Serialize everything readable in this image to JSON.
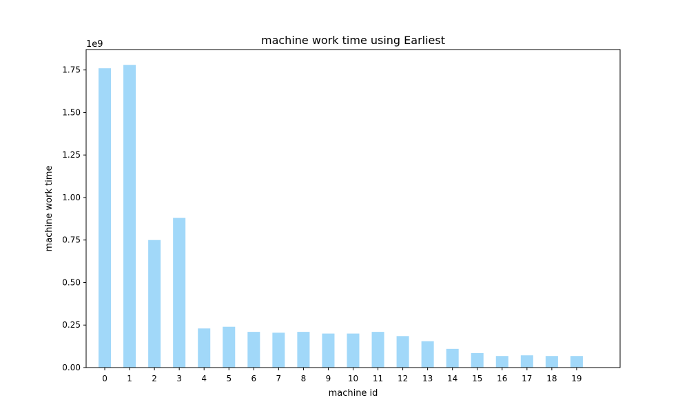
{
  "chart_data": {
    "type": "bar",
    "title": "machine work time using Earliest",
    "xlabel": "machine id",
    "ylabel": "machine work time",
    "y_multiplier": "1e9",
    "categories": [
      "0",
      "1",
      "2",
      "3",
      "4",
      "5",
      "6",
      "7",
      "8",
      "9",
      "10",
      "11",
      "12",
      "13",
      "14",
      "15",
      "16",
      "17",
      "18",
      "19"
    ],
    "values": [
      1.76,
      1.78,
      0.75,
      0.88,
      0.23,
      0.24,
      0.21,
      0.205,
      0.21,
      0.2,
      0.2,
      0.21,
      0.185,
      0.155,
      0.11,
      0.085,
      0.068,
      0.072,
      0.068,
      0.068
    ],
    "ylim": [
      0,
      1.87
    ],
    "xlim": [
      -0.75,
      20.75
    ],
    "yticks": [
      0.0,
      0.25,
      0.5,
      0.75,
      1.0,
      1.25,
      1.5,
      1.75
    ],
    "ytick_labels": [
      "0.00",
      "0.25",
      "0.50",
      "0.75",
      "1.00",
      "1.25",
      "1.50",
      "1.75"
    ],
    "bar_color": "#a1d8f9",
    "grid": false,
    "legend": null
  }
}
